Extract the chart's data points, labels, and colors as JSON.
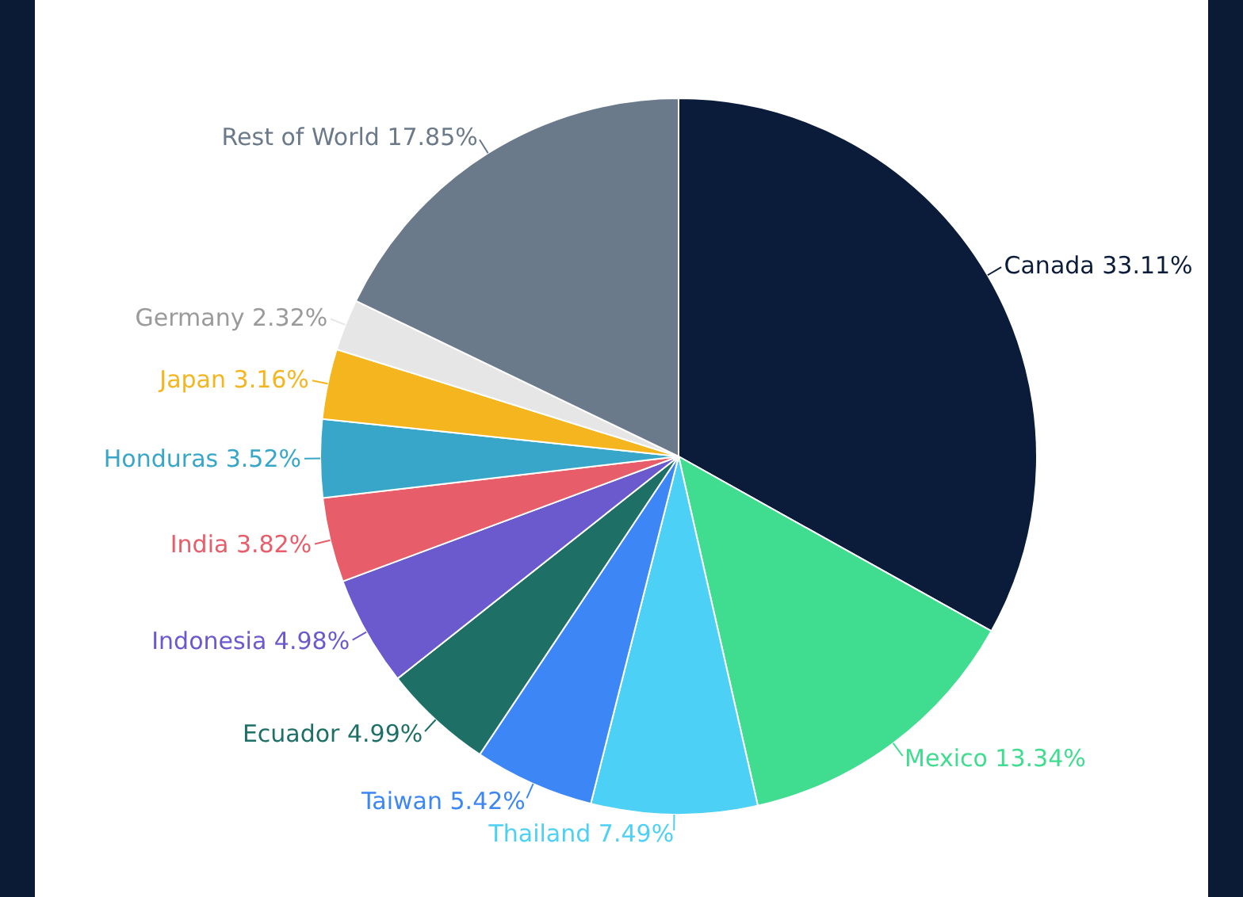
{
  "chart_data": {
    "type": "pie",
    "categories": [
      "Canada",
      "Mexico",
      "Thailand",
      "Taiwan",
      "Ecuador",
      "Indonesia",
      "India",
      "Honduras",
      "Japan",
      "Germany",
      "Rest of World"
    ],
    "values": [
      33.11,
      13.34,
      7.49,
      5.42,
      4.99,
      4.98,
      3.82,
      3.52,
      3.16,
      2.32,
      17.85
    ],
    "value_labels": [
      "33.11%",
      "13.34%",
      "7.49%",
      "5.42%",
      "4.99%",
      "4.98%",
      "3.82%",
      "3.52%",
      "3.16%",
      "2.32%",
      "17.85%"
    ],
    "colors": [
      "#0b1b3a",
      "#40dc8f",
      "#4dd0f5",
      "#3d86f5",
      "#1e7066",
      "#6a5acd",
      "#e85d6a",
      "#37a6c8",
      "#f5b51e",
      "#e6e6e6",
      "#6b7a8a"
    ],
    "legend": false
  }
}
